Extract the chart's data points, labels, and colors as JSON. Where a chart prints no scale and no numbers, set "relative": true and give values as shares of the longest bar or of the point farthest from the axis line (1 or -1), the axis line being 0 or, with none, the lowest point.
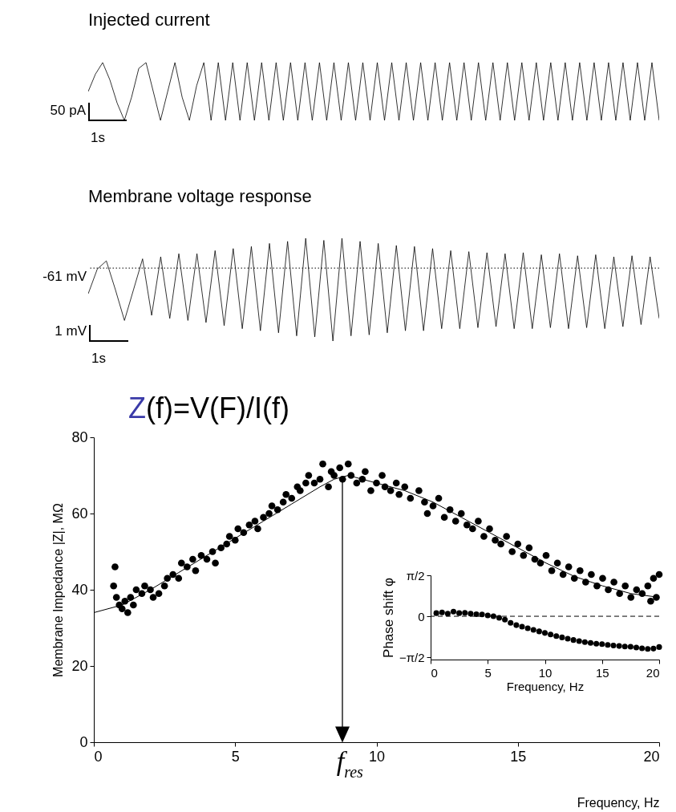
{
  "chart_data": [
    {
      "type": "line",
      "title": "Injected current",
      "relative": true,
      "color": "#000000",
      "line_style": "solid",
      "annotations": [
        "50 pA",
        "1s"
      ],
      "categories": [
        null,
        null,
        null,
        null,
        null,
        null,
        null,
        null,
        null,
        null,
        null,
        null,
        null,
        null,
        null,
        null,
        null,
        null,
        null,
        null,
        null,
        null,
        null,
        null,
        null,
        null,
        null,
        null,
        null,
        null,
        null,
        null,
        null,
        null,
        null,
        null,
        null,
        null,
        null,
        null,
        null,
        null,
        null,
        null,
        null,
        null,
        null,
        null,
        null,
        null,
        null,
        null,
        null,
        null,
        null,
        null,
        null,
        null,
        null,
        null,
        null,
        null,
        null,
        null,
        null,
        null,
        null,
        null,
        null,
        null,
        null,
        null,
        null,
        null,
        null,
        null,
        null,
        null,
        null,
        null
      ],
      "values": [
        0.5,
        0.8,
        1,
        0.7,
        0.3,
        0,
        0.4,
        0.9,
        1,
        0.5,
        0,
        0.5,
        1,
        0.4,
        0,
        0.6,
        1,
        0,
        1,
        0,
        1,
        0,
        1,
        0,
        1,
        0,
        1,
        0,
        1,
        0,
        1,
        0,
        1,
        0,
        1,
        0,
        1,
        0,
        1,
        0,
        1,
        0,
        1,
        0,
        1,
        0,
        1,
        0,
        1,
        0,
        1,
        0,
        1,
        0,
        1,
        0,
        1,
        0,
        1,
        0,
        1,
        0,
        1,
        0,
        1,
        0,
        1,
        0,
        1,
        0,
        1,
        0,
        1,
        0,
        1,
        0,
        1,
        0,
        1,
        0
      ]
    },
    {
      "type": "line",
      "title": "Membrane voltage response",
      "relative": true,
      "color": "#000000",
      "line_style": "solid",
      "annotations": [
        "1 mV",
        "1s"
      ],
      "ref_lines": [
        {
          "axis": "y",
          "value": 0.71,
          "label": "-61 mV",
          "line_style": "dotted",
          "color": "#000000"
        }
      ],
      "categories": [
        null,
        null,
        null,
        null,
        null,
        null,
        null,
        null,
        null,
        null,
        null,
        null,
        null,
        null,
        null,
        null,
        null,
        null,
        null,
        null,
        null,
        null,
        null,
        null,
        null,
        null,
        null,
        null,
        null,
        null,
        null,
        null,
        null,
        null,
        null,
        null,
        null,
        null,
        null,
        null,
        null,
        null,
        null,
        null,
        null,
        null,
        null,
        null,
        null,
        null,
        null,
        null,
        null,
        null,
        null,
        null,
        null,
        null,
        null,
        null,
        null,
        null,
        null,
        null
      ],
      "values": [
        0.46,
        0.7,
        0.78,
        0.5,
        0.2,
        0.5,
        0.8,
        0.25,
        0.82,
        0.22,
        0.85,
        0.2,
        0.85,
        0.18,
        0.88,
        0.15,
        0.9,
        0.12,
        0.92,
        0.1,
        0.95,
        0.08,
        0.97,
        0.05,
        1,
        0.04,
        0.98,
        0,
        1,
        0.05,
        0.97,
        0.06,
        0.95,
        0.08,
        0.93,
        0.1,
        0.92,
        0.1,
        0.9,
        0.12,
        0.88,
        0.12,
        0.87,
        0.13,
        0.86,
        0.14,
        0.85,
        0.12,
        0.86,
        0.12,
        0.84,
        0.13,
        0.85,
        0.12,
        0.83,
        0.13,
        0.84,
        0.12,
        0.82,
        0.14,
        0.83,
        0.16,
        0.82,
        0.22
      ]
    },
    {
      "type": "scatter",
      "title": "Z(f)=V(F)/I(f)",
      "xlabel": "Frequency, Hz",
      "ylabel": "Membrane Impedance |Z|, MΩ",
      "xlim": [
        0,
        20
      ],
      "xticks": [
        0,
        5,
        10,
        15,
        20
      ],
      "ylim": [
        0,
        80
      ],
      "yticks": [
        0,
        20,
        40,
        60,
        80
      ],
      "grid": false,
      "annotations": [
        {
          "text": "f$_{res}$",
          "x": 8.8,
          "y": 70
        }
      ],
      "series": [
        {
          "type": "scatter",
          "marker": "circle",
          "color": "#000000",
          "x": [
            0.7,
            0.75,
            0.8,
            0.9,
            1.0,
            1.1,
            1.2,
            1.3,
            1.4,
            1.5,
            1.7,
            1.8,
            2.0,
            2.1,
            2.3,
            2.5,
            2.6,
            2.8,
            3.0,
            3.1,
            3.3,
            3.5,
            3.6,
            3.8,
            4.0,
            4.2,
            4.3,
            4.5,
            4.7,
            4.8,
            5.0,
            5.1,
            5.3,
            5.5,
            5.7,
            5.8,
            6.0,
            6.2,
            6.3,
            6.5,
            6.7,
            6.8,
            7.0,
            7.2,
            7.3,
            7.5,
            7.6,
            7.8,
            8.0,
            8.1,
            8.3,
            8.4,
            8.5,
            8.7,
            8.8,
            9.0,
            9.1,
            9.3,
            9.5,
            9.6,
            9.8,
            10.0,
            10.2,
            10.3,
            10.5,
            10.7,
            10.8,
            11.0,
            11.2,
            11.5,
            11.7,
            11.8,
            12.0,
            12.2,
            12.4,
            12.6,
            12.8,
            13.0,
            13.2,
            13.4,
            13.6,
            13.8,
            14.0,
            14.2,
            14.4,
            14.6,
            14.8,
            15.0,
            15.2,
            15.4,
            15.6,
            15.8,
            16.0,
            16.2,
            16.4,
            16.6,
            16.8,
            17.0,
            17.2,
            17.4,
            17.6,
            17.8,
            18.0,
            18.2,
            18.4,
            18.6,
            18.8,
            19.0,
            19.2,
            19.4,
            19.6,
            19.7,
            19.8,
            19.9,
            20.0
          ],
          "values": [
            41,
            46,
            38,
            36,
            35,
            37,
            34,
            38,
            36,
            40,
            39,
            41,
            40,
            38,
            39,
            41,
            43,
            44,
            43,
            47,
            46,
            48,
            45,
            49,
            48,
            50,
            47,
            51,
            52,
            54,
            53,
            56,
            55,
            57,
            58,
            56,
            59,
            60,
            62,
            61,
            63,
            65,
            64,
            67,
            66,
            68,
            70,
            68,
            69,
            73,
            67,
            71,
            70,
            72,
            69,
            73,
            70,
            68,
            69,
            71,
            66,
            68,
            70,
            67,
            66,
            68,
            65,
            67,
            64,
            66,
            63,
            60,
            62,
            64,
            59,
            61,
            58,
            60,
            57,
            56,
            58,
            54,
            56,
            53,
            52,
            54,
            50,
            52,
            49,
            51,
            48,
            47,
            49,
            45,
            47,
            44,
            46,
            43,
            45,
            42,
            44,
            41,
            43,
            40,
            42,
            39,
            41,
            38,
            40,
            39,
            41,
            37,
            43,
            38,
            44
          ]
        },
        {
          "type": "line",
          "color": "#000000",
          "x": [
            0,
            1,
            2,
            3,
            4,
            5,
            6,
            7,
            8,
            8.5,
            9,
            10,
            11,
            12,
            13,
            14,
            15,
            16,
            17,
            18,
            19,
            20
          ],
          "values": [
            34,
            36,
            40,
            44.5,
            49,
            53.5,
            58,
            62.5,
            67,
            69,
            70,
            68,
            66,
            63,
            59,
            55,
            51,
            47,
            43.5,
            41,
            39,
            38
          ]
        }
      ]
    },
    {
      "type": "scatter",
      "xlabel": "Frequency, Hz",
      "ylabel": "Phase shift φ",
      "xlim": [
        0,
        20
      ],
      "xticks": [
        0,
        5,
        10,
        15,
        20
      ],
      "ylim": [
        -1.66,
        1.5708
      ],
      "yticks": [
        {
          "value": 1.5708,
          "label": "π/2"
        },
        0,
        {
          "value": -1.5708,
          "label": "−π/2"
        }
      ],
      "grid": false,
      "marker": "circle",
      "color": "#000000",
      "ref_lines": [
        {
          "axis": "y",
          "value": 0,
          "line_style": "dashed",
          "color": "#000000"
        }
      ],
      "x": [
        0.5,
        1,
        1.5,
        2,
        2.5,
        3,
        3.5,
        4,
        4.5,
        5,
        5.5,
        6,
        6.5,
        7,
        7.5,
        8,
        8.5,
        9,
        9.5,
        10,
        10.5,
        11,
        11.5,
        12,
        12.5,
        13,
        13.5,
        14,
        14.5,
        15,
        15.5,
        16,
        16.5,
        17,
        17.5,
        18,
        18.5,
        19,
        19.5,
        20
      ],
      "values": [
        0.12,
        0.15,
        0.1,
        0.18,
        0.12,
        0.13,
        0.1,
        0.08,
        0.07,
        0.03,
        0,
        -0.06,
        -0.13,
        -0.25,
        -0.34,
        -0.4,
        -0.46,
        -0.52,
        -0.58,
        -0.64,
        -0.7,
        -0.76,
        -0.81,
        -0.86,
        -0.91,
        -0.95,
        -0.99,
        -1.02,
        -1.05,
        -1.07,
        -1.1,
        -1.12,
        -1.14,
        -1.16,
        -1.17,
        -1.2,
        -1.23,
        -1.25,
        -1.24,
        -1.18
      ]
    }
  ]
}
